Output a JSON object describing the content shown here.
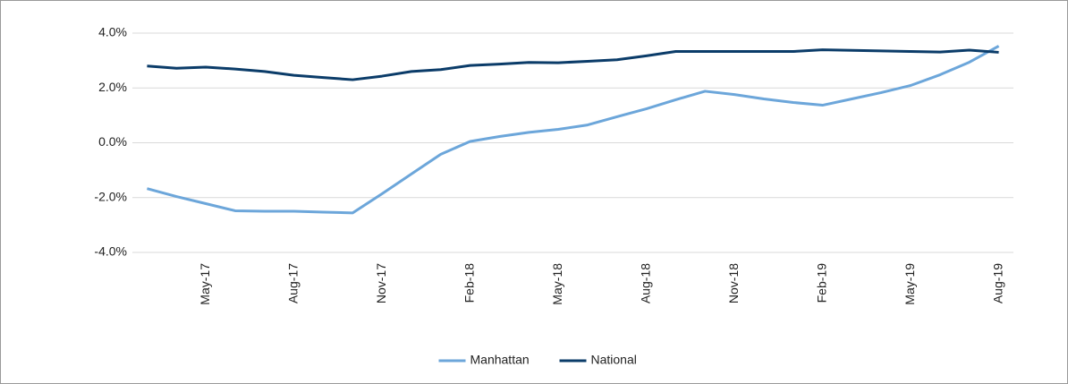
{
  "chart_data": {
    "type": "line",
    "categories": [
      null,
      null,
      "May-17",
      null,
      null,
      "Aug-17",
      null,
      null,
      "Nov-17",
      null,
      null,
      "Feb-18",
      null,
      null,
      "May-18",
      null,
      null,
      "Aug-18",
      null,
      null,
      "Nov-18",
      null,
      null,
      "Feb-19",
      null,
      null,
      "May-19",
      null,
      null,
      "Aug-19"
    ],
    "series": [
      {
        "name": "Manhattan",
        "color": "#6ca6da",
        "values": [
          -1.67,
          -1.96,
          -2.22,
          -2.48,
          -2.5,
          -2.5,
          -2.53,
          -2.56,
          -1.86,
          -1.14,
          -0.42,
          0.05,
          0.23,
          0.38,
          0.49,
          0.65,
          0.95,
          1.24,
          1.57,
          1.88,
          1.76,
          1.6,
          1.47,
          1.37,
          1.6,
          1.83,
          2.09,
          2.48,
          2.94,
          3.53
        ]
      },
      {
        "name": "National",
        "color": "#0b3c69",
        "values": [
          2.8,
          2.72,
          2.76,
          2.69,
          2.6,
          2.46,
          2.38,
          2.3,
          2.43,
          2.6,
          2.67,
          2.82,
          2.87,
          2.93,
          2.92,
          2.97,
          3.03,
          3.17,
          3.33,
          3.33,
          3.33,
          3.33,
          3.33,
          3.39,
          3.37,
          3.35,
          3.33,
          3.31,
          3.38,
          3.3
        ]
      }
    ],
    "ylim": [
      -4,
      4
    ],
    "yticks": [
      {
        "value": -4,
        "label": "-4.0%"
      },
      {
        "value": -2,
        "label": "-2.0%"
      },
      {
        "value": 0,
        "label": "0.0%"
      },
      {
        "value": 2,
        "label": "2.0%"
      },
      {
        "value": 4,
        "label": "4.0%"
      }
    ],
    "grid": true,
    "legend": "bottom"
  }
}
